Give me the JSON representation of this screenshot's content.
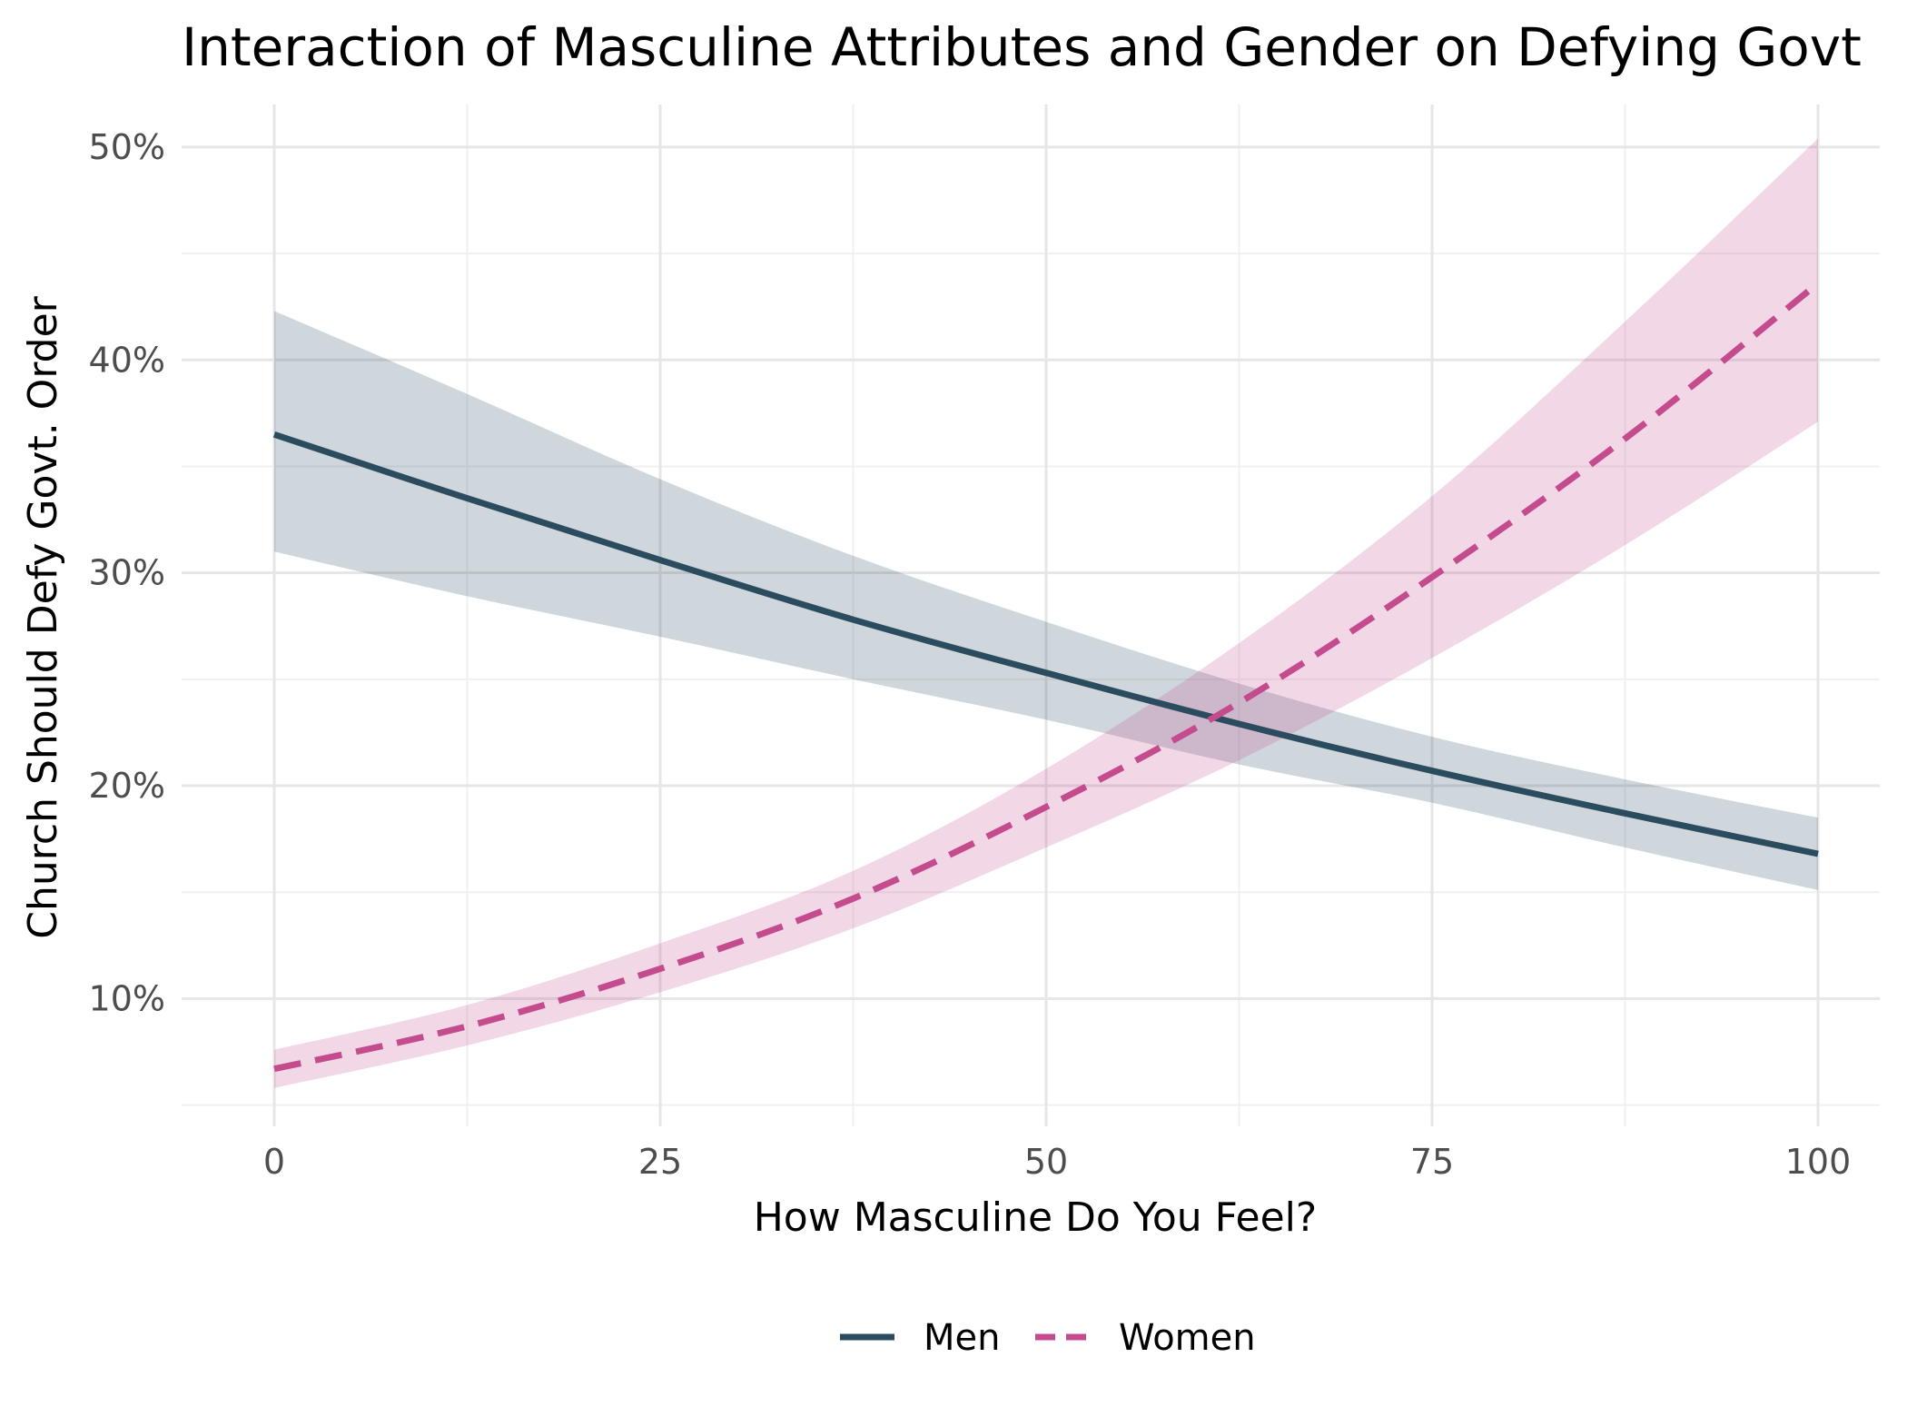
{
  "chart_data": {
    "type": "line",
    "title": "Interaction of Masculine Attributes and Gender on Defying Govt",
    "xlabel": "How Masculine Do You Feel?",
    "ylabel": "Church Should Defy Govt. Order",
    "xlim": [
      -6,
      104
    ],
    "ylim": [
      4,
      52
    ],
    "x_ticks": [
      0,
      25,
      50,
      75,
      100
    ],
    "x_tick_labels": [
      "0",
      "25",
      "50",
      "75",
      "100"
    ],
    "y_ticks": [
      10,
      20,
      30,
      40,
      50
    ],
    "y_tick_labels": [
      "10%",
      "20%",
      "30%",
      "40%",
      "50%"
    ],
    "grid": true,
    "legend_position": "bottom",
    "x": [
      0,
      12.5,
      25,
      37.5,
      50,
      62.5,
      75,
      87.5,
      100
    ],
    "series": [
      {
        "name": "Men",
        "color": "#2b4b5f",
        "line_style": "solid",
        "values": [
          36.5,
          33.5,
          30.6,
          27.8,
          25.3,
          22.9,
          20.7,
          18.7,
          16.8
        ],
        "lower": [
          31.0,
          28.9,
          27.0,
          25.0,
          23.1,
          21.0,
          19.2,
          17.1,
          15.1
        ],
        "upper": [
          42.3,
          38.4,
          34.4,
          30.8,
          27.7,
          24.8,
          22.3,
          20.3,
          18.5
        ]
      },
      {
        "name": "Women",
        "color": "#c44b8e",
        "line_style": "dashed",
        "values": [
          6.7,
          8.7,
          11.4,
          14.7,
          19.0,
          23.9,
          29.8,
          36.3,
          43.6
        ],
        "lower": [
          5.8,
          7.8,
          10.3,
          13.3,
          17.1,
          21.2,
          26.0,
          31.3,
          37.1
        ],
        "upper": [
          7.6,
          9.7,
          12.6,
          16.0,
          20.8,
          26.7,
          33.6,
          41.8,
          50.4
        ]
      }
    ]
  }
}
